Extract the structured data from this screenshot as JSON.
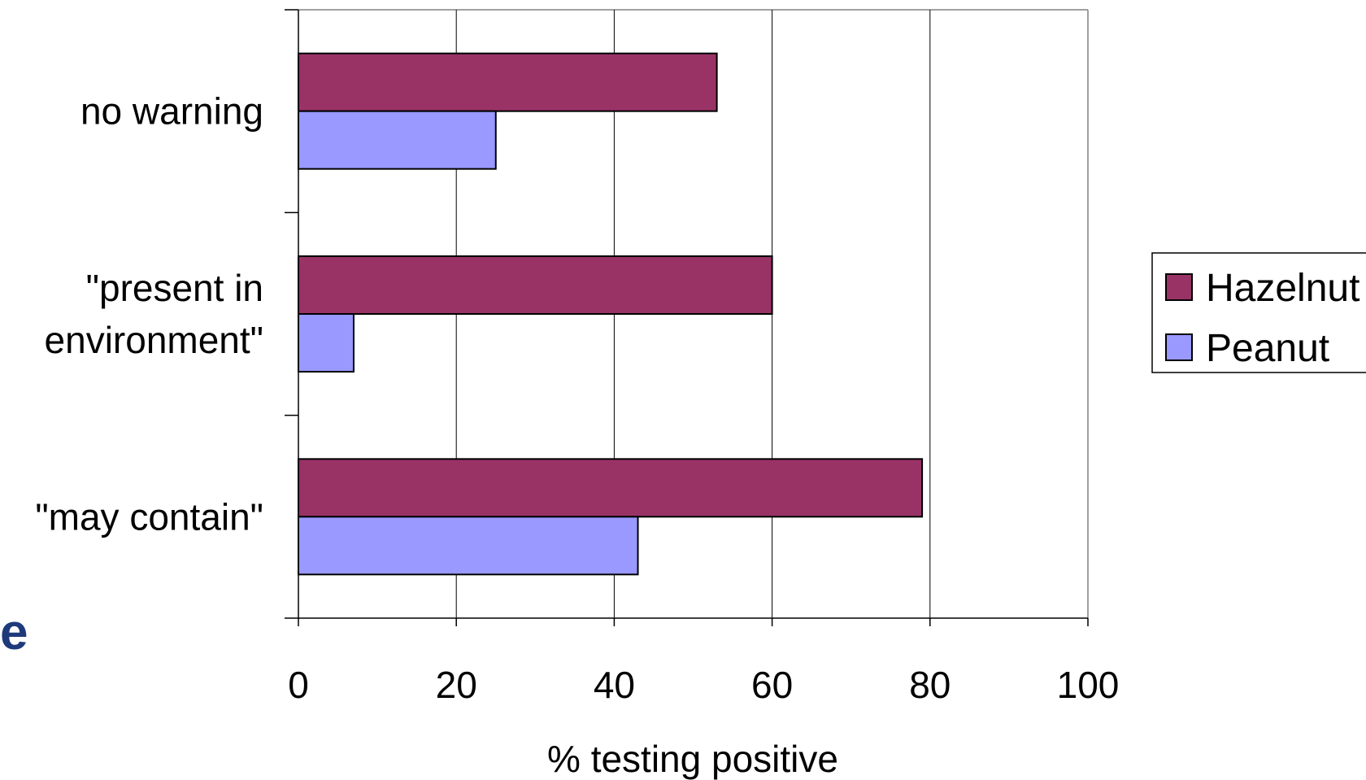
{
  "chart_data": {
    "type": "bar",
    "orientation": "horizontal",
    "categories": [
      "no warning",
      "\"present in environment\"",
      "\"may contain\""
    ],
    "category_lines": [
      [
        "no warning"
      ],
      [
        "\"present in",
        "environment\""
      ],
      [
        "\"may contain\""
      ]
    ],
    "series": [
      {
        "name": "Hazelnut",
        "color": "#993366",
        "values": [
          53,
          60,
          79
        ]
      },
      {
        "name": "Peanut",
        "color": "#9999ff",
        "values": [
          25,
          7,
          43
        ]
      }
    ],
    "xlabel": "% testing positive",
    "xlim": [
      0,
      100
    ],
    "xticks": [
      "0",
      "20",
      "40",
      "60",
      "80",
      "100"
    ],
    "grid": "vertical",
    "legend": "right"
  },
  "stray_text": "e"
}
